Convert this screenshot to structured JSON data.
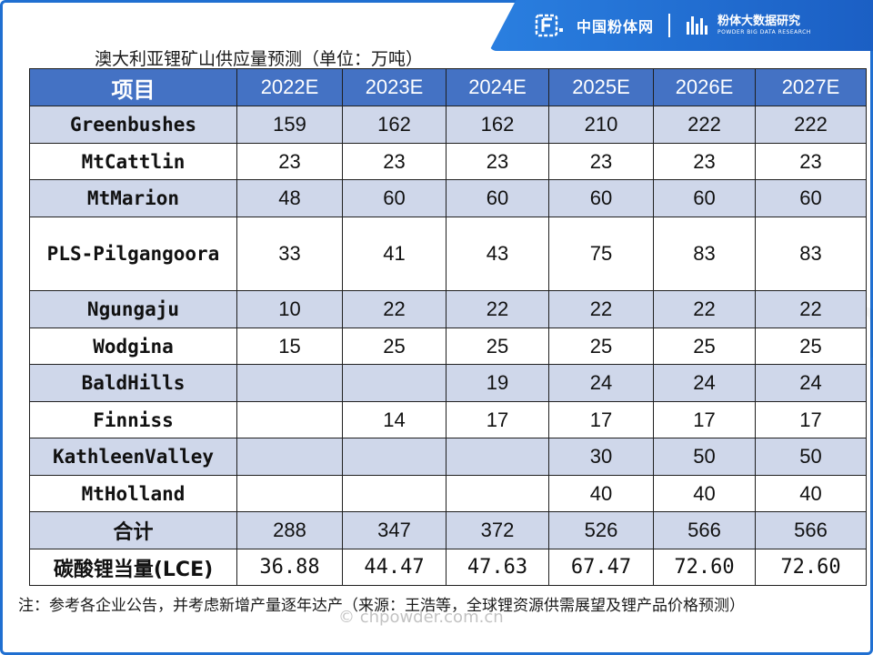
{
  "brand": {
    "site_name": "中国粉体网",
    "bigdata_name": "粉体大数据研究",
    "bigdata_sub": "POWDER BIG DATA RESEARCH"
  },
  "title": "澳大利亚锂矿山供应量预测（单位：万吨）",
  "table": {
    "columns": [
      "项目",
      "2022E",
      "2023E",
      "2024E",
      "2025E",
      "2026E",
      "2027E"
    ],
    "rows": [
      {
        "name": "Greenbushes",
        "values": [
          "159",
          "162",
          "162",
          "210",
          "222",
          "222"
        ]
      },
      {
        "name": "MtCattlin",
        "values": [
          "23",
          "23",
          "23",
          "23",
          "23",
          "23"
        ]
      },
      {
        "name": "MtMarion",
        "values": [
          "48",
          "60",
          "60",
          "60",
          "60",
          "60"
        ]
      },
      {
        "name": "PLS-Pilgangoora",
        "values": [
          "33",
          "41",
          "43",
          "75",
          "83",
          "83"
        ]
      },
      {
        "name": "Ngungaju",
        "values": [
          "10",
          "22",
          "22",
          "22",
          "22",
          "22"
        ]
      },
      {
        "name": "Wodgina",
        "values": [
          "15",
          "25",
          "25",
          "25",
          "25",
          "25"
        ]
      },
      {
        "name": "BaldHills",
        "values": [
          "",
          "",
          "19",
          "24",
          "24",
          "24"
        ]
      },
      {
        "name": "Finniss",
        "values": [
          "",
          "14",
          "17",
          "17",
          "17",
          "17"
        ]
      },
      {
        "name": "KathleenValley",
        "values": [
          "",
          "",
          "",
          "30",
          "50",
          "50"
        ]
      },
      {
        "name": "MtHolland",
        "values": [
          "",
          "",
          "",
          "40",
          "40",
          "40"
        ]
      },
      {
        "name": "合计",
        "values": [
          "288",
          "347",
          "372",
          "526",
          "566",
          "566"
        ]
      },
      {
        "name": "碳酸锂当量(LCE)",
        "values": [
          "36.88",
          "44.47",
          "47.63",
          "67.47",
          "72.60",
          "72.60"
        ]
      }
    ]
  },
  "note": "注：参考各企业公告，并考虑新增产量逐年达产（来源：王浩等，全球锂资源供需展望及锂产品价格预测）",
  "watermark": "chpowder.com.cn",
  "copyright": "© chpowder.com.cn"
}
